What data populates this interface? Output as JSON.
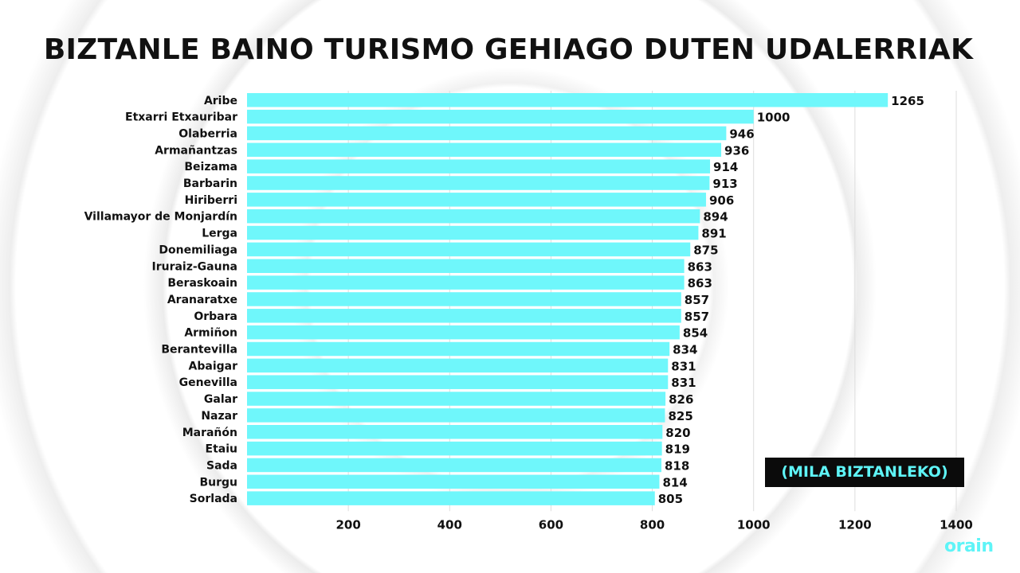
{
  "title": "BIZTANLE BAINO TURISMO GEHIAGO DUTEN UDALERRIAK",
  "units_note": "(MILA BIZTANLEKO)",
  "logo": "orain",
  "colors": {
    "bar": "#6ff7fb",
    "grid": "#dddddd",
    "text": "#111111",
    "accent": "#5ef4f7"
  },
  "chart_data": {
    "type": "bar",
    "orientation": "horizontal",
    "categories": [
      "Aribe",
      "Etxarri Etxauribar",
      "Olaberria",
      "Armañantzas",
      "Beizama",
      "Barbarin",
      "Hiriberri",
      "Villamayor de Monjardín",
      "Lerga",
      "Donemiliaga",
      "Iruraiz-Gauna",
      "Beraskoain",
      "Aranaratxe",
      "Orbara",
      "Armiñon",
      "Berantevilla",
      "Abaigar",
      "Genevilla",
      "Galar",
      "Nazar",
      "Marañón",
      "Etaiu",
      "Sada",
      "Burgu",
      "Sorlada"
    ],
    "values": [
      1265,
      1000,
      946,
      936,
      914,
      913,
      906,
      894,
      891,
      875,
      863,
      863,
      857,
      857,
      854,
      834,
      831,
      831,
      826,
      825,
      820,
      819,
      818,
      814,
      805
    ],
    "xlim": [
      0,
      1400
    ],
    "xticks": [
      "200",
      "400",
      "600",
      "800",
      "1000",
      "1200",
      "1400"
    ],
    "data_labels": true,
    "grid": "vertical"
  }
}
